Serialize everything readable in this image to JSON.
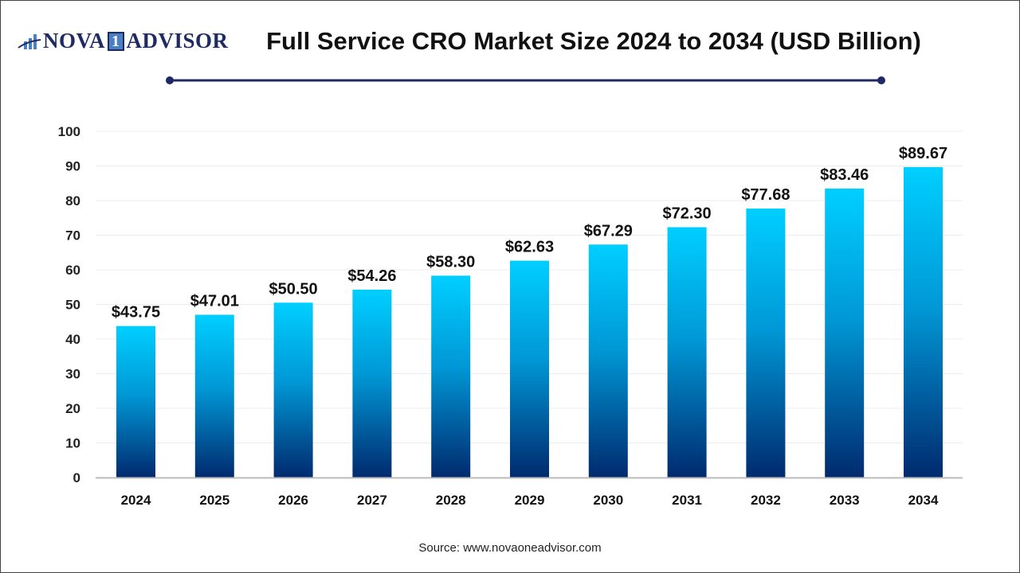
{
  "logo": {
    "text_left": "NOVA",
    "text_num": "1",
    "text_right": "ADVISOR"
  },
  "title": "Full Service CRO Market Size 2024 to 2034 (USD Billion)",
  "source": "Source: www.novaoneadvisor.com",
  "colors": {
    "bar_top": "#00CFFF",
    "bar_bottom": "#002A6E",
    "divider": "#1f2a63"
  },
  "chart_data": {
    "type": "bar",
    "title": "Full Service CRO Market Size 2024 to 2034 (USD Billion)",
    "categories": [
      "2024",
      "2025",
      "2026",
      "2027",
      "2028",
      "2029",
      "2030",
      "2031",
      "2032",
      "2033",
      "2034"
    ],
    "values": [
      43.75,
      47.01,
      50.5,
      54.26,
      58.3,
      62.63,
      67.29,
      72.3,
      77.68,
      83.46,
      89.67
    ],
    "data_labels": [
      "$43.75",
      "$47.01",
      "$50.50",
      "$54.26",
      "$58.30",
      "$62.63",
      "$67.29",
      "$72.30",
      "$77.68",
      "$83.46",
      "$89.67"
    ],
    "yticks": [
      0,
      10,
      20,
      30,
      40,
      50,
      60,
      70,
      80,
      90,
      100
    ],
    "ylim": [
      0,
      100
    ],
    "grid": true,
    "xlabel": "",
    "ylabel": ""
  }
}
